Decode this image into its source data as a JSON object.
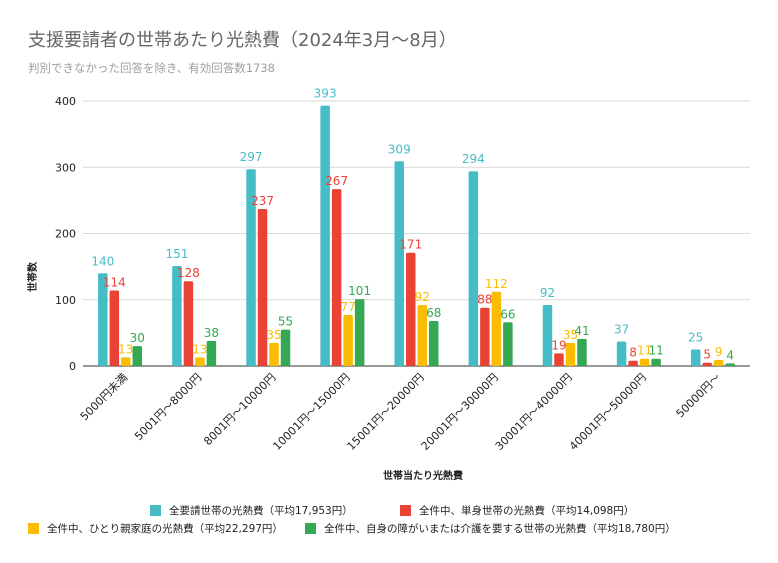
{
  "chart_data": {
    "type": "bar",
    "title": "支援要請者の世帯あたり光熱費（2024年3月～8月）",
    "subtitle": "判別できなかった回答を除き、有効回答数1738",
    "xlabel": "世帯当たり光熱費",
    "ylabel": "世帯数",
    "ylim": [
      0,
      400
    ],
    "yticks": [
      0,
      100,
      200,
      300,
      400
    ],
    "grid": true,
    "legend_position": "bottom",
    "categories": [
      "5000円未満",
      "5001円～8000円",
      "8001円～10000円",
      "10001円～15000円",
      "15001円～20000円",
      "20001円～30000円",
      "30001円～40000円",
      "40001円～50000円",
      "50000円～"
    ],
    "series": [
      {
        "name": "全要請世帯の光熱費（平均17,953円）",
        "color": "#46bdc6",
        "values": [
          140,
          151,
          297,
          393,
          309,
          294,
          92,
          37,
          25
        ]
      },
      {
        "name": "全件中、単身世帯の光熱費（平均14,098円）",
        "color": "#ea4335",
        "values": [
          114,
          128,
          237,
          267,
          171,
          88,
          19,
          8,
          5
        ]
      },
      {
        "name": "全件中、ひとり親家庭の光熱費（平均22,297円）",
        "color": "#fbbc04",
        "values": [
          13,
          13,
          35,
          77,
          92,
          112,
          35,
          11,
          9
        ]
      },
      {
        "name": "全件中、自身の障がいまたは介護を要する世帯の光熱費（平均18,780円）",
        "color": "#34a853",
        "values": [
          30,
          38,
          55,
          101,
          68,
          66,
          41,
          11,
          4
        ]
      }
    ]
  }
}
